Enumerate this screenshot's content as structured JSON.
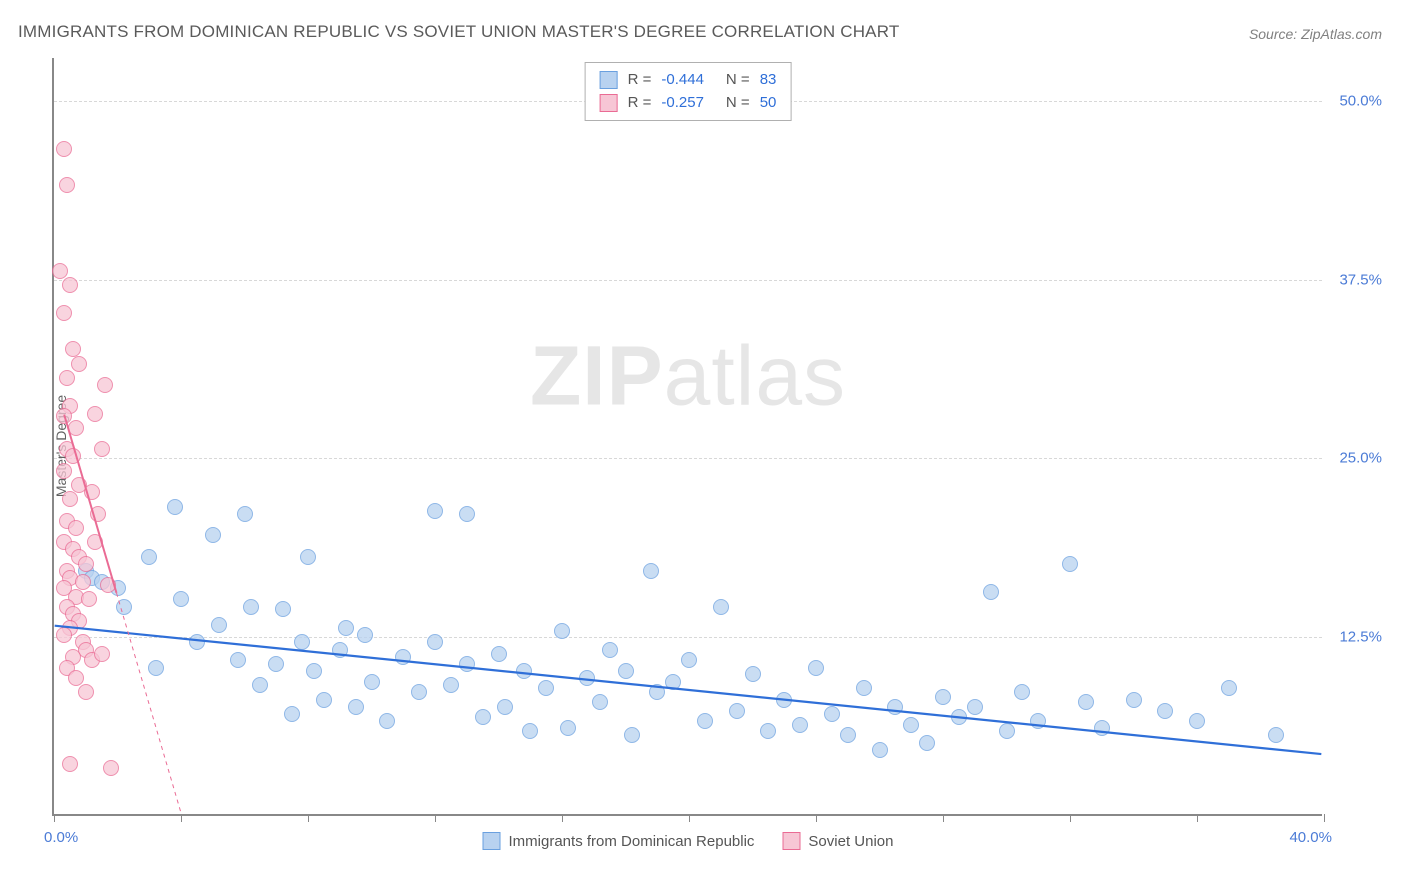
{
  "title": "IMMIGRANTS FROM DOMINICAN REPUBLIC VS SOVIET UNION MASTER'S DEGREE CORRELATION CHART",
  "source": "Source: ZipAtlas.com",
  "ylabel": "Master's Degree",
  "watermark_a": "ZIP",
  "watermark_b": "atlas",
  "chart": {
    "type": "scatter",
    "xlim": [
      0,
      40
    ],
    "ylim": [
      0,
      53
    ],
    "x_tick_positions": [
      0,
      4,
      8,
      12,
      16,
      20,
      24,
      28,
      32,
      36,
      40
    ],
    "y_gridlines": [
      12.5,
      25.0,
      37.5,
      50.0
    ],
    "y_tick_labels": [
      "12.5%",
      "25.0%",
      "37.5%",
      "50.0%"
    ],
    "x_min_label": "0.0%",
    "x_max_label": "40.0%",
    "background_color": "#ffffff",
    "grid_color": "#d8d8d8",
    "axis_color": "#888888",
    "marker_radius": 8,
    "series": [
      {
        "name": "Immigrants from Dominican Republic",
        "fill": "#b8d2f0",
        "stroke": "#6aa0df",
        "fill_opacity": 0.75,
        "R": "-0.444",
        "N": "83",
        "trend": {
          "x1": 0,
          "y1": 13.2,
          "x2": 40,
          "y2": 4.2,
          "color": "#2f6fd8",
          "width": 2.2
        },
        "points": [
          [
            1.0,
            17.0
          ],
          [
            1.2,
            16.5
          ],
          [
            1.5,
            16.2
          ],
          [
            2.0,
            15.8
          ],
          [
            2.2,
            14.5
          ],
          [
            3.0,
            18.0
          ],
          [
            3.2,
            10.2
          ],
          [
            4.0,
            15.0
          ],
          [
            3.8,
            21.5
          ],
          [
            4.5,
            12.0
          ],
          [
            5.0,
            19.5
          ],
          [
            5.2,
            13.2
          ],
          [
            5.8,
            10.8
          ],
          [
            6.0,
            21.0
          ],
          [
            6.2,
            14.5
          ],
          [
            6.5,
            9.0
          ],
          [
            7.0,
            10.5
          ],
          [
            7.2,
            14.3
          ],
          [
            7.5,
            7.0
          ],
          [
            7.8,
            12.0
          ],
          [
            8.0,
            18.0
          ],
          [
            8.2,
            10.0
          ],
          [
            8.5,
            8.0
          ],
          [
            9.0,
            11.5
          ],
          [
            9.2,
            13.0
          ],
          [
            9.5,
            7.5
          ],
          [
            9.8,
            12.5
          ],
          [
            10.0,
            9.2
          ],
          [
            10.5,
            6.5
          ],
          [
            11.0,
            11.0
          ],
          [
            11.5,
            8.5
          ],
          [
            12.0,
            12.0
          ],
          [
            12.0,
            21.2
          ],
          [
            12.5,
            9.0
          ],
          [
            13.0,
            10.5
          ],
          [
            13.0,
            21.0
          ],
          [
            13.5,
            6.8
          ],
          [
            14.0,
            11.2
          ],
          [
            14.2,
            7.5
          ],
          [
            14.8,
            10.0
          ],
          [
            15.0,
            5.8
          ],
          [
            15.5,
            8.8
          ],
          [
            16.0,
            12.8
          ],
          [
            16.2,
            6.0
          ],
          [
            16.8,
            9.5
          ],
          [
            17.2,
            7.8
          ],
          [
            17.5,
            11.5
          ],
          [
            18.0,
            10.0
          ],
          [
            18.2,
            5.5
          ],
          [
            18.8,
            17.0
          ],
          [
            19.0,
            8.5
          ],
          [
            19.5,
            9.2
          ],
          [
            20.0,
            10.8
          ],
          [
            20.5,
            6.5
          ],
          [
            21.0,
            14.5
          ],
          [
            21.5,
            7.2
          ],
          [
            22.0,
            9.8
          ],
          [
            22.5,
            5.8
          ],
          [
            23.0,
            8.0
          ],
          [
            23.5,
            6.2
          ],
          [
            24.0,
            10.2
          ],
          [
            24.5,
            7.0
          ],
          [
            25.0,
            5.5
          ],
          [
            25.5,
            8.8
          ],
          [
            26.0,
            4.5
          ],
          [
            26.5,
            7.5
          ],
          [
            27.0,
            6.2
          ],
          [
            27.5,
            5.0
          ],
          [
            28.0,
            8.2
          ],
          [
            28.5,
            6.8
          ],
          [
            29.0,
            7.5
          ],
          [
            29.5,
            15.5
          ],
          [
            30.0,
            5.8
          ],
          [
            30.5,
            8.5
          ],
          [
            31.0,
            6.5
          ],
          [
            32.0,
            17.5
          ],
          [
            32.5,
            7.8
          ],
          [
            33.0,
            6.0
          ],
          [
            34.0,
            8.0
          ],
          [
            35.0,
            7.2
          ],
          [
            36.0,
            6.5
          ],
          [
            37.0,
            8.8
          ],
          [
            38.5,
            5.5
          ]
        ]
      },
      {
        "name": "Soviet Union",
        "fill": "#f7c6d5",
        "stroke": "#ea6b94",
        "fill_opacity": 0.75,
        "R": "-0.257",
        "N": "50",
        "trend": {
          "x1": 0.3,
          "y1": 28.0,
          "x2": 4.0,
          "y2": 0.0,
          "color": "#ea6b94",
          "width": 2.0,
          "dash_from_y": 15.5
        },
        "points": [
          [
            0.3,
            46.5
          ],
          [
            0.4,
            44.0
          ],
          [
            0.2,
            38.0
          ],
          [
            0.5,
            37.0
          ],
          [
            0.3,
            35.0
          ],
          [
            0.6,
            32.5
          ],
          [
            0.4,
            30.5
          ],
          [
            0.8,
            31.5
          ],
          [
            0.5,
            28.5
          ],
          [
            0.3,
            27.8
          ],
          [
            0.7,
            27.0
          ],
          [
            0.4,
            25.5
          ],
          [
            0.6,
            25.0
          ],
          [
            0.3,
            24.0
          ],
          [
            0.8,
            23.0
          ],
          [
            0.5,
            22.0
          ],
          [
            0.4,
            20.5
          ],
          [
            0.7,
            20.0
          ],
          [
            0.3,
            19.0
          ],
          [
            0.6,
            18.5
          ],
          [
            0.8,
            18.0
          ],
          [
            0.4,
            17.0
          ],
          [
            0.5,
            16.5
          ],
          [
            0.9,
            16.2
          ],
          [
            0.3,
            15.8
          ],
          [
            0.7,
            15.2
          ],
          [
            0.4,
            14.5
          ],
          [
            0.6,
            14.0
          ],
          [
            0.8,
            13.5
          ],
          [
            0.5,
            13.0
          ],
          [
            0.3,
            12.5
          ],
          [
            0.9,
            12.0
          ],
          [
            1.0,
            11.5
          ],
          [
            0.6,
            11.0
          ],
          [
            1.2,
            10.8
          ],
          [
            0.4,
            10.2
          ],
          [
            1.0,
            17.5
          ],
          [
            1.3,
            19.0
          ],
          [
            1.5,
            25.5
          ],
          [
            1.4,
            21.0
          ],
          [
            1.6,
            30.0
          ],
          [
            0.7,
            9.5
          ],
          [
            1.1,
            15.0
          ],
          [
            1.2,
            22.5
          ],
          [
            1.0,
            8.5
          ],
          [
            1.5,
            11.2
          ],
          [
            0.5,
            3.5
          ],
          [
            1.8,
            3.2
          ],
          [
            1.7,
            16.0
          ],
          [
            1.3,
            28.0
          ]
        ]
      }
    ]
  },
  "legend_top": {
    "R_label": "R =",
    "N_label": "N ="
  },
  "legend_bottom": {
    "a": "Immigrants from Dominican Republic",
    "b": "Soviet Union"
  }
}
